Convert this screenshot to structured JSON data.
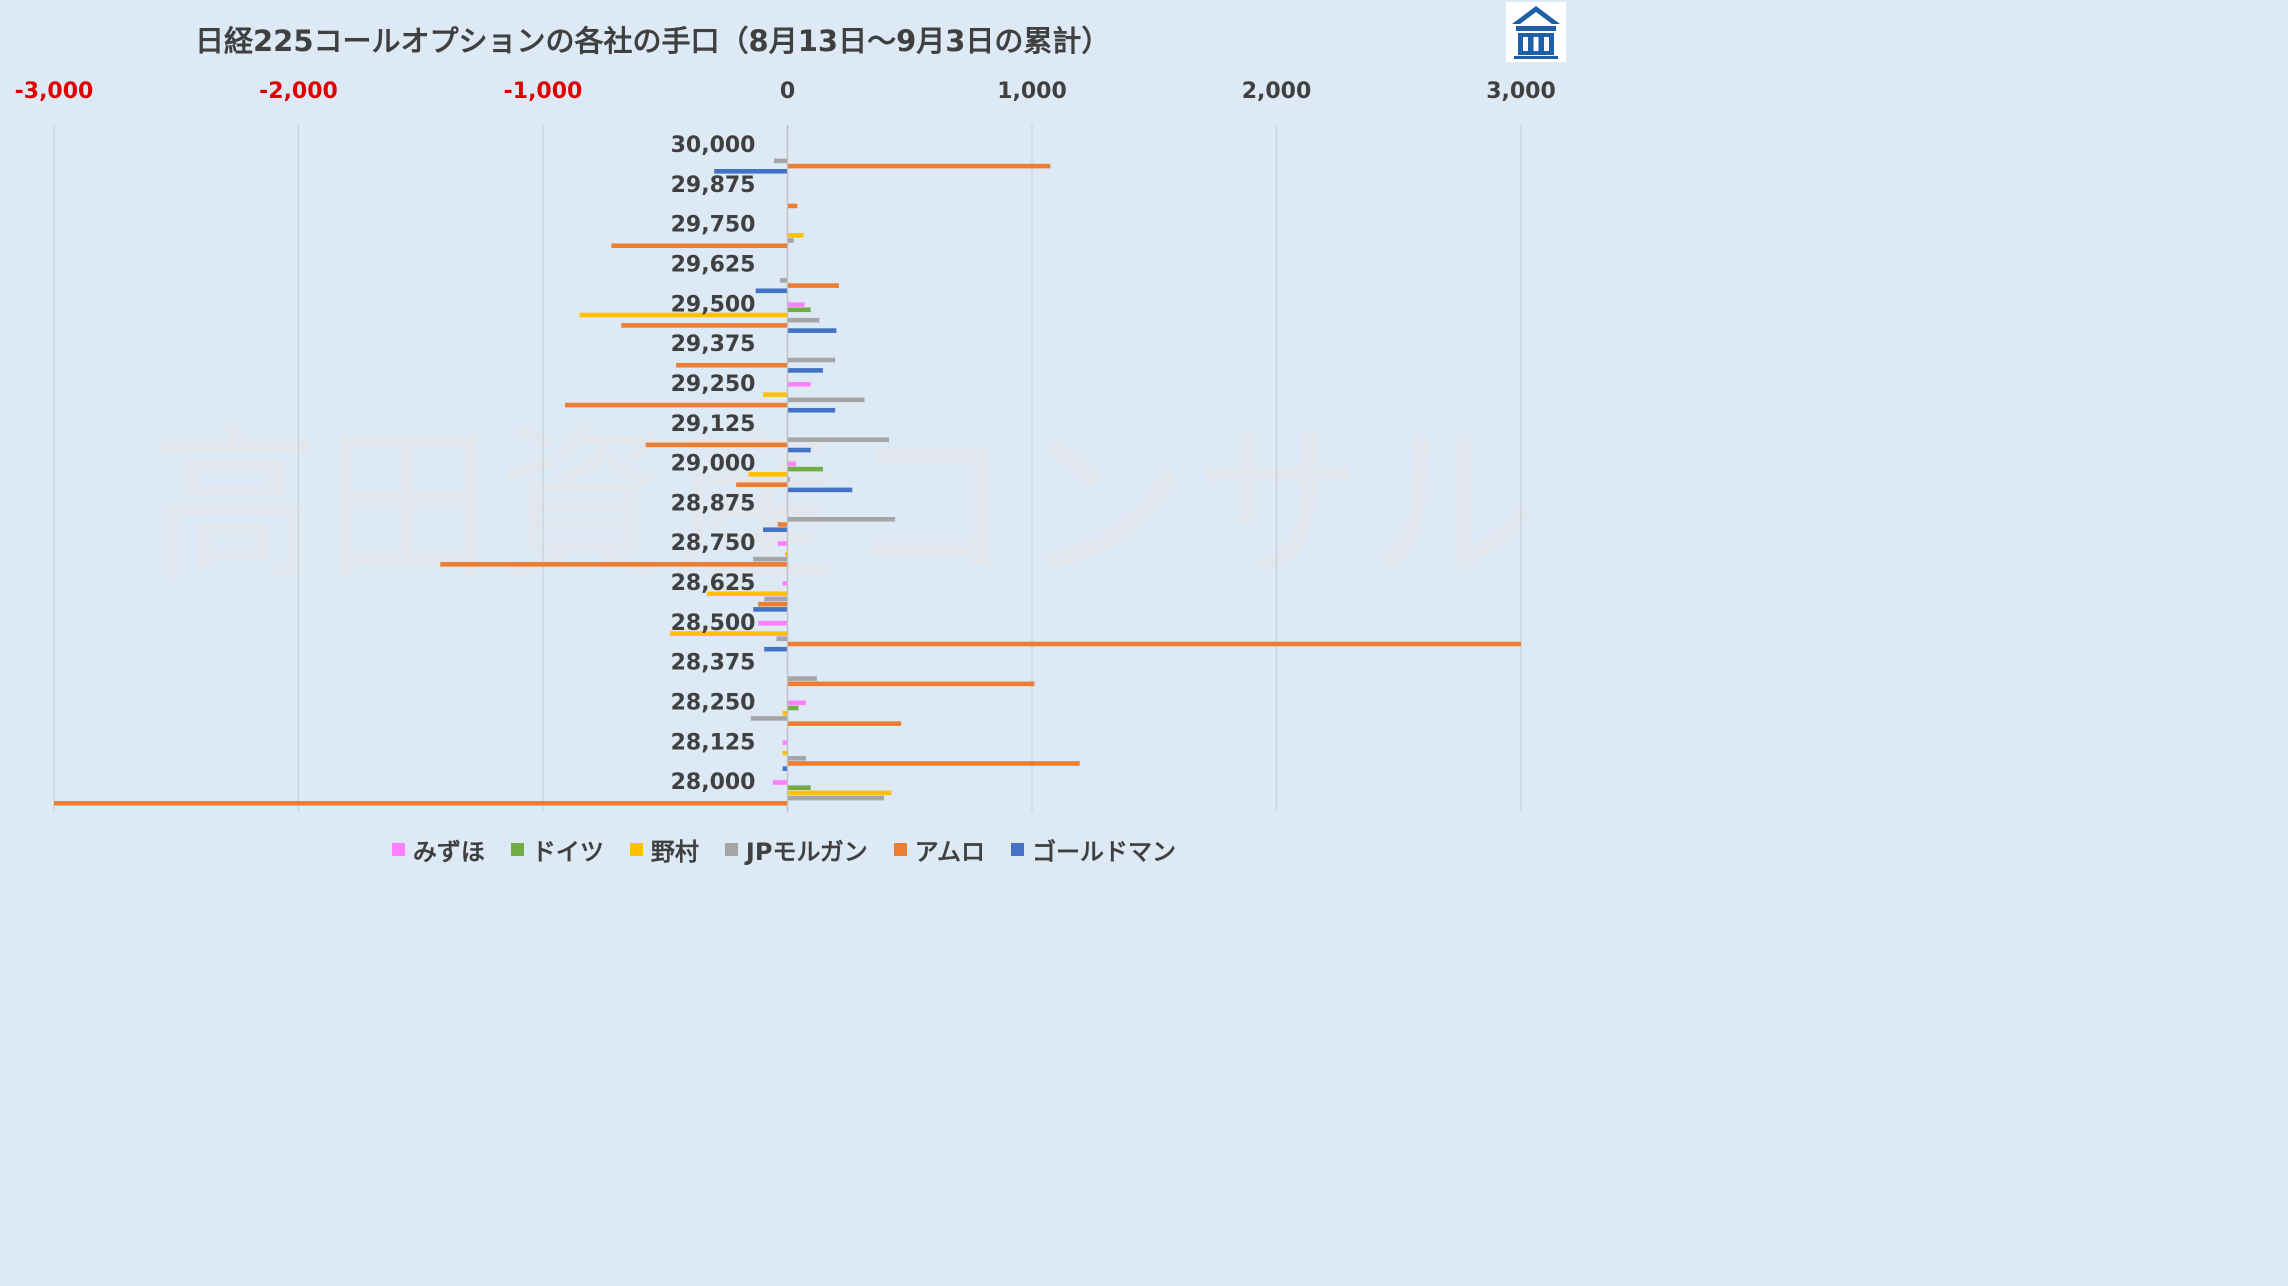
{
  "title": "日経225コールオプションの各社の手口（8月13日～9月3日の累計）",
  "watermark": "高田資産コンサル",
  "logo": {
    "icon": "company-logo-icon",
    "colors": {
      "blue": "#1f5fa8",
      "white": "#ffffff"
    }
  },
  "colors": {
    "background": "#ddeaf6",
    "negative_tick": "#e00000",
    "positive_tick": "#404040",
    "grid": "#c8d3de"
  },
  "chart_data": {
    "type": "bar",
    "orientation": "horizontal",
    "title": "日経225コールオプションの各社の手口（8月13日～9月3日の累計）",
    "xlim": [
      -3000,
      3000
    ],
    "x_ticks": [
      -3000,
      -2000,
      -1000,
      0,
      1000,
      2000,
      3000
    ],
    "x_tick_labels": [
      "-3,000",
      "-2,000",
      "-1,000",
      "0",
      "1,000",
      "2,000",
      "3,000"
    ],
    "x_axis_position": "top",
    "grid": true,
    "legend_position": "bottom",
    "categories": [
      "30,000",
      "29,875",
      "29,750",
      "29,625",
      "29,500",
      "29,375",
      "29,250",
      "29,125",
      "29,000",
      "28,875",
      "28,750",
      "28,625",
      "28,500",
      "28,375",
      "28,250",
      "28,125",
      "28,000"
    ],
    "series": [
      {
        "name": "みずほ",
        "color": "#ff80ff",
        "values": [
          0,
          0,
          0,
          0,
          70,
          0,
          95,
          0,
          35,
          0,
          -40,
          -20,
          -120,
          0,
          75,
          -20,
          -60
        ]
      },
      {
        "name": "ドイツ",
        "color": "#70ad47",
        "values": [
          0,
          0,
          0,
          0,
          95,
          0,
          0,
          0,
          145,
          0,
          0,
          0,
          0,
          0,
          45,
          0,
          95
        ]
      },
      {
        "name": "野村",
        "color": "#ffc000",
        "values": [
          0,
          0,
          65,
          0,
          -850,
          0,
          -100,
          0,
          -160,
          0,
          -10,
          -330,
          -480,
          0,
          -20,
          -20,
          425
        ]
      },
      {
        "name": "JPモルガン",
        "color": "#a5a5a5",
        "values": [
          -55,
          0,
          25,
          -30,
          130,
          195,
          315,
          415,
          10,
          440,
          -140,
          -95,
          -45,
          120,
          -150,
          75,
          395
        ]
      },
      {
        "name": "アムロ",
        "color": "#ed7d31",
        "values": [
          1075,
          40,
          -720,
          210,
          -680,
          -455,
          -910,
          -580,
          -210,
          -40,
          -1420,
          -120,
          3000,
          1010,
          465,
          1195,
          -3000
        ]
      },
      {
        "name": "ゴールドマン",
        "color": "#4472c4",
        "values": [
          -300,
          0,
          0,
          -130,
          200,
          145,
          195,
          95,
          265,
          -100,
          0,
          -140,
          -95,
          0,
          0,
          -20,
          0
        ]
      }
    ]
  }
}
